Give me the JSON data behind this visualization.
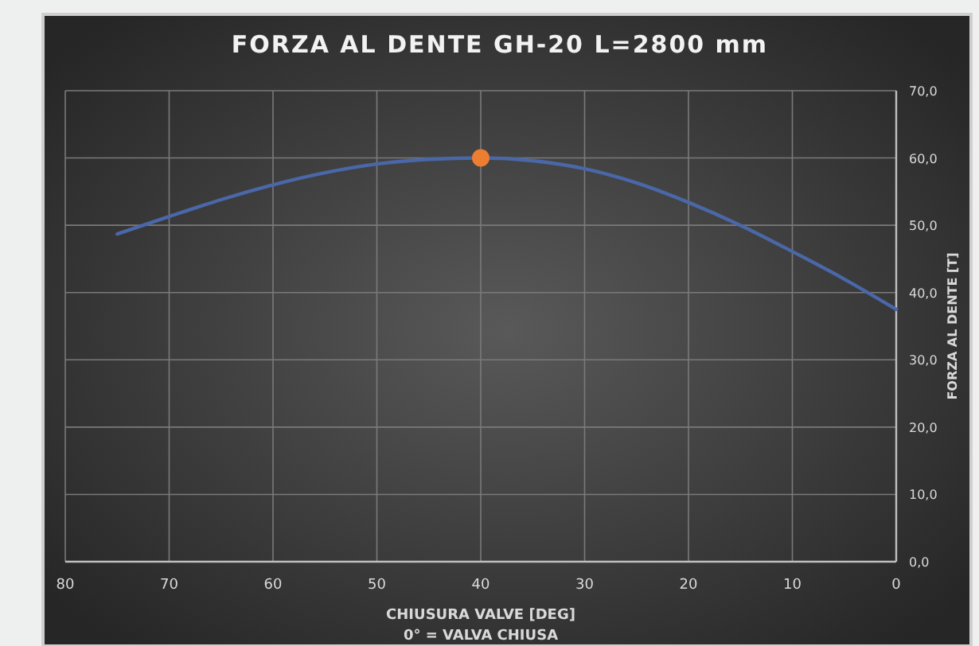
{
  "chart_data": {
    "type": "line",
    "title": "FORZA AL DENTE GH-20 L=2800 mm",
    "xlabel": "CHIUSURA VALVE [DEG]",
    "annotations": [
      "0° = VALVA CHIUSA"
    ],
    "ylabel": "FORZA AL DENTE [T]",
    "series": [
      {
        "color": "#4a67a8",
        "x": [
          75,
          70,
          65,
          60,
          55,
          50,
          45,
          40,
          35,
          30,
          25,
          20,
          15,
          10,
          5,
          0
        ],
        "values": [
          48.7,
          51.3,
          53.8,
          56.0,
          57.8,
          59.1,
          59.8,
          60.0,
          59.6,
          58.4,
          56.3,
          53.4,
          50.0,
          46.1,
          42.0,
          37.5
        ]
      },
      {
        "type": "scatter",
        "color": "#ed7d31",
        "x": [
          40
        ],
        "values": [
          60.0
        ],
        "marker": "circle"
      }
    ],
    "xlim": [
      80,
      0
    ],
    "xticks": [
      80,
      70,
      60,
      50,
      40,
      30,
      20,
      10,
      0
    ],
    "ylim": [
      0,
      70
    ],
    "yticks": [
      {
        "value": 0,
        "label": "0,0"
      },
      {
        "value": 10,
        "label": "10,0"
      },
      {
        "value": 20,
        "label": "20,0"
      },
      {
        "value": 30,
        "label": "30,0"
      },
      {
        "value": 40,
        "label": "40,0"
      },
      {
        "value": 50,
        "label": "50,0"
      },
      {
        "value": 60,
        "label": "60,0"
      },
      {
        "value": 70,
        "label": "70,0"
      }
    ],
    "grid": true,
    "marker": "none",
    "line_style": "solid"
  }
}
